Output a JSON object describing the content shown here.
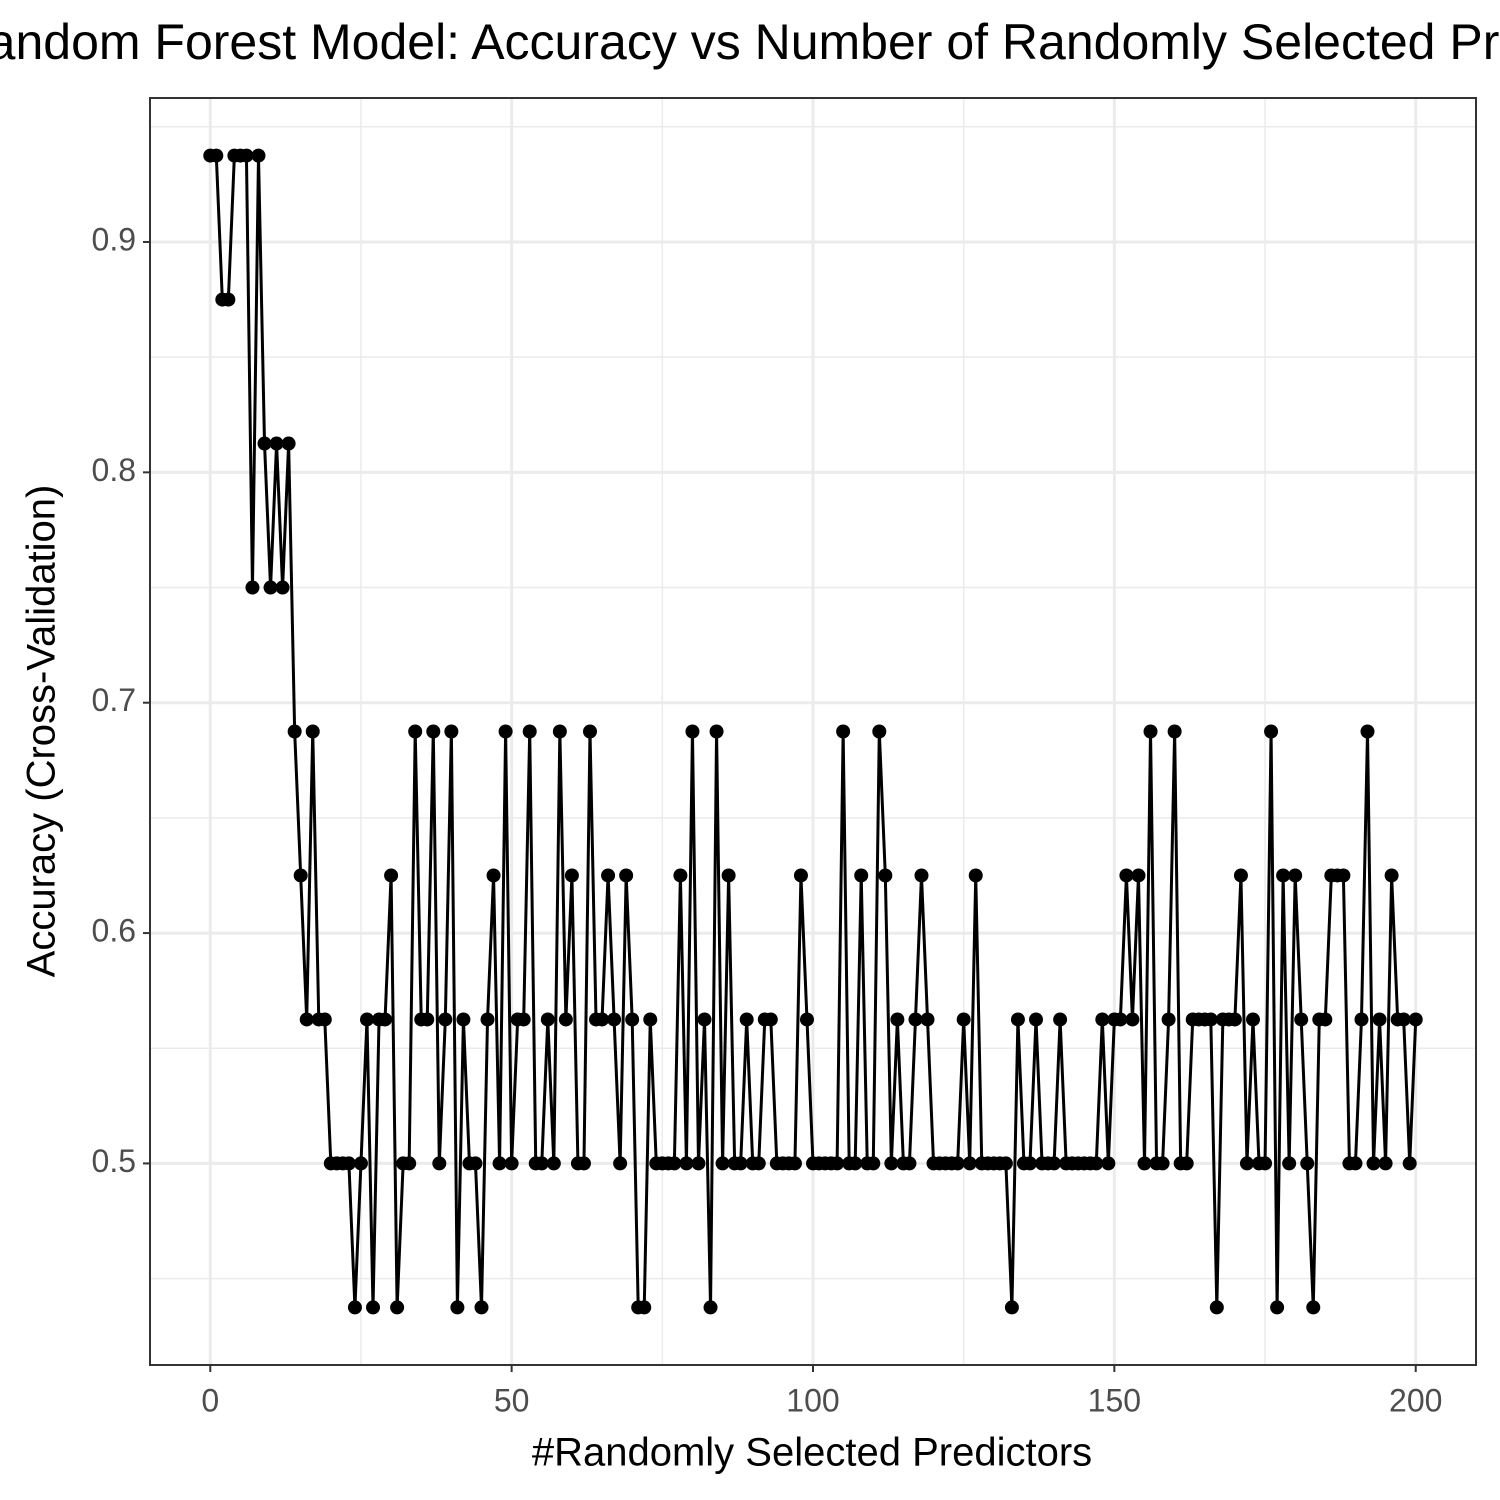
{
  "chart_data": {
    "type": "line",
    "title": "Random Forest Model: Accuracy vs Number of Randomly Selected Predictors",
    "x_label": "#Randomly Selected Predictors",
    "y_label": "Accuracy (Cross-Validation)",
    "x": [
      0,
      1,
      2,
      3,
      4,
      5,
      6,
      7,
      8,
      9,
      10,
      11,
      12,
      13,
      14,
      15,
      16,
      17,
      18,
      19,
      20,
      21,
      22,
      23,
      24,
      25,
      26,
      27,
      28,
      29,
      30,
      31,
      32,
      33,
      34,
      35,
      36,
      37,
      38,
      39,
      40,
      41,
      42,
      43,
      44,
      45,
      46,
      47,
      48,
      49,
      50,
      51,
      52,
      53,
      54,
      55,
      56,
      57,
      58,
      59,
      60,
      61,
      62,
      63,
      64,
      65,
      66,
      67,
      68,
      69,
      70,
      71,
      72,
      73,
      74,
      75,
      76,
      77,
      78,
      79,
      80,
      81,
      82,
      83,
      84,
      85,
      86,
      87,
      88,
      89,
      90,
      91,
      92,
      93,
      94,
      95,
      96,
      97,
      98,
      99,
      100,
      101,
      102,
      103,
      104,
      105,
      106,
      107,
      108,
      109,
      110,
      111,
      112,
      113,
      114,
      115,
      116,
      117,
      118,
      119,
      120,
      121,
      122,
      123,
      124,
      125,
      126,
      127,
      128,
      129,
      130,
      131,
      132,
      133,
      134,
      135,
      136,
      137,
      138,
      139,
      140,
      141,
      142,
      143,
      144,
      145,
      146,
      147,
      148,
      149,
      150,
      151,
      152,
      153,
      154,
      155,
      156,
      157,
      158,
      159,
      160,
      161,
      162,
      163,
      164,
      165,
      166,
      167,
      168,
      169,
      170,
      171,
      172,
      173,
      174,
      175,
      176,
      177,
      178,
      179,
      180,
      181,
      182,
      183,
      184,
      185,
      186,
      187,
      188,
      189,
      190,
      191,
      192,
      193,
      194,
      195,
      196,
      197,
      198,
      199,
      200
    ],
    "values": [
      0.9375,
      0.9375,
      0.875,
      0.875,
      0.9375,
      0.9375,
      0.9375,
      0.75,
      0.9375,
      0.8125,
      0.75,
      0.8125,
      0.75,
      0.8125,
      0.6875,
      0.625,
      0.5625,
      0.6875,
      0.5625,
      0.5625,
      0.5,
      0.5,
      0.5,
      0.5,
      0.4375,
      0.5,
      0.5625,
      0.4375,
      0.5625,
      0.5625,
      0.625,
      0.4375,
      0.5,
      0.5,
      0.6875,
      0.5625,
      0.5625,
      0.6875,
      0.5,
      0.5625,
      0.6875,
      0.4375,
      0.5625,
      0.5,
      0.5,
      0.4375,
      0.5625,
      0.625,
      0.5,
      0.6875,
      0.5,
      0.5625,
      0.5625,
      0.6875,
      0.5,
      0.5,
      0.5625,
      0.5,
      0.6875,
      0.5625,
      0.625,
      0.5,
      0.5,
      0.6875,
      0.5625,
      0.5625,
      0.625,
      0.5625,
      0.5,
      0.625,
      0.5625,
      0.4375,
      0.4375,
      0.5625,
      0.5,
      0.5,
      0.5,
      0.5,
      0.625,
      0.5,
      0.6875,
      0.5,
      0.5625,
      0.4375,
      0.6875,
      0.5,
      0.625,
      0.5,
      0.5,
      0.5625,
      0.5,
      0.5,
      0.5625,
      0.5625,
      0.5,
      0.5,
      0.5,
      0.5,
      0.625,
      0.5625,
      0.5,
      0.5,
      0.5,
      0.5,
      0.5,
      0.6875,
      0.5,
      0.5,
      0.625,
      0.5,
      0.5,
      0.6875,
      0.625,
      0.5,
      0.5625,
      0.5,
      0.5,
      0.5625,
      0.625,
      0.5625,
      0.5,
      0.5,
      0.5,
      0.5,
      0.5,
      0.5625,
      0.5,
      0.625,
      0.5,
      0.5,
      0.5,
      0.5,
      0.5,
      0.4375,
      0.5625,
      0.5,
      0.5,
      0.5625,
      0.5,
      0.5,
      0.5,
      0.5625,
      0.5,
      0.5,
      0.5,
      0.5,
      0.5,
      0.5,
      0.5625,
      0.5,
      0.5625,
      0.5625,
      0.625,
      0.5625,
      0.625,
      0.5,
      0.6875,
      0.5,
      0.5,
      0.5625,
      0.6875,
      0.5,
      0.5,
      0.5625,
      0.5625,
      0.5625,
      0.5625,
      0.4375,
      0.5625,
      0.5625,
      0.5625,
      0.625,
      0.5,
      0.5625,
      0.5,
      0.5,
      0.6875,
      0.4375,
      0.625,
      0.5,
      0.625,
      0.5625,
      0.5,
      0.4375,
      0.5625,
      0.5625,
      0.625,
      0.625,
      0.625,
      0.5,
      0.5,
      0.5625,
      0.6875,
      0.5,
      0.5625,
      0.5,
      0.625,
      0.5625,
      0.5625,
      0.5,
      0.5625
    ],
    "color": "#000000",
    "xlim": [
      -10,
      210
    ],
    "ylim": [
      0.4125,
      0.9625
    ],
    "xticks": [
      0,
      50,
      100,
      150,
      200
    ],
    "yticks": [
      0.5,
      0.6,
      0.7,
      0.8,
      0.9
    ],
    "minor_xticks": [
      25,
      75,
      125,
      175
    ],
    "minor_yticks": [
      0.45,
      0.55,
      0.65,
      0.75,
      0.85,
      0.95
    ],
    "grid": true
  }
}
